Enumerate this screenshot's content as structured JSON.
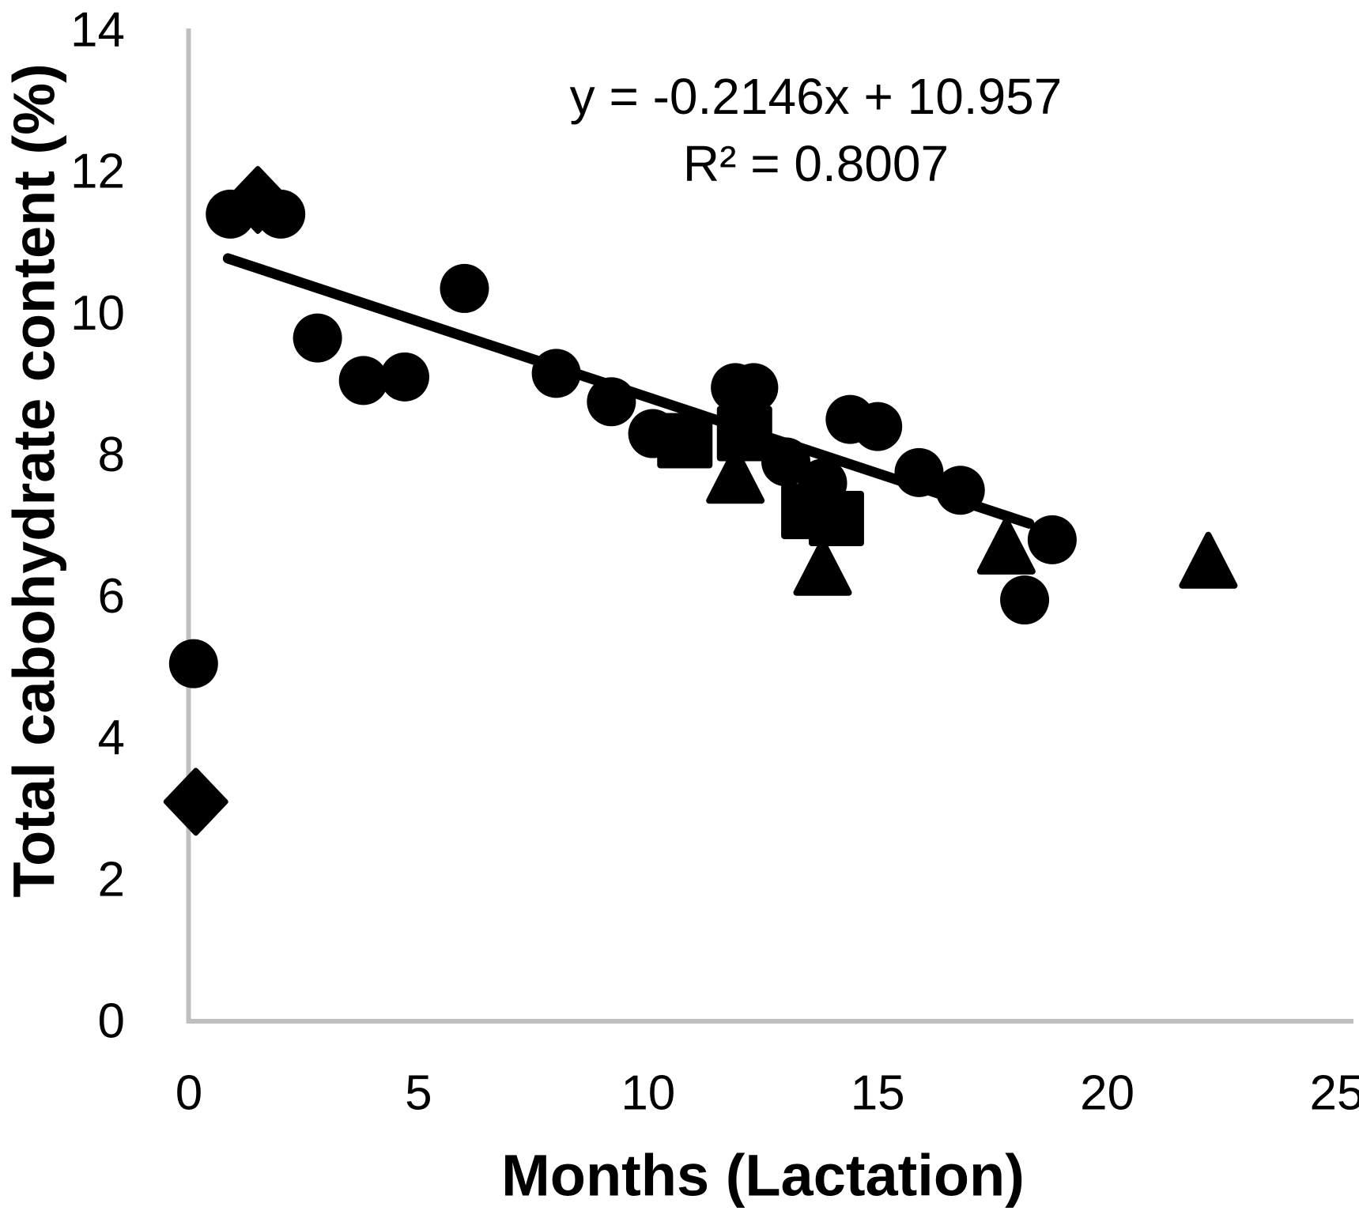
{
  "figure": {
    "background_color": "#ffffff",
    "axis_color": "#bfbfbf",
    "data_color": "#000000"
  },
  "annotation": {
    "equation_line1": "y = -0.2146x + 10.957",
    "equation_line2": "R² = 0.8007"
  },
  "chart_data": {
    "type": "scatter",
    "title": "",
    "xlabel": "Months (Lactation)",
    "ylabel": "Total cabohydrate content (%)",
    "xlim": [
      0,
      25
    ],
    "ylim": [
      0,
      14
    ],
    "x_ticks": [
      0,
      5,
      10,
      15,
      20,
      25
    ],
    "y_ticks": [
      0,
      2,
      4,
      6,
      8,
      10,
      12,
      14
    ],
    "grid": false,
    "legend_position": "none",
    "series": [
      {
        "name": "circles",
        "marker": "circle",
        "points": [
          [
            0.1,
            5.05
          ],
          [
            0.9,
            11.4
          ],
          [
            2.0,
            11.4
          ],
          [
            2.8,
            9.65
          ],
          [
            3.8,
            9.05
          ],
          [
            4.7,
            9.1
          ],
          [
            6.0,
            10.35
          ],
          [
            8.0,
            9.15
          ],
          [
            9.2,
            8.75
          ],
          [
            10.1,
            8.3
          ],
          [
            11.9,
            8.95
          ],
          [
            12.3,
            8.95
          ],
          [
            13.0,
            7.9
          ],
          [
            13.8,
            7.6
          ],
          [
            14.4,
            8.5
          ],
          [
            15.0,
            8.4
          ],
          [
            15.9,
            7.75
          ],
          [
            16.8,
            7.5
          ],
          [
            18.2,
            5.95
          ],
          [
            18.8,
            6.8
          ]
        ]
      },
      {
        "name": "diamonds",
        "marker": "diamond",
        "points": [
          [
            0.15,
            3.1
          ],
          [
            1.5,
            11.6
          ]
        ]
      },
      {
        "name": "squares",
        "marker": "square",
        "points": [
          [
            10.8,
            8.2
          ],
          [
            12.1,
            8.3
          ],
          [
            13.5,
            7.2
          ],
          [
            14.1,
            7.1
          ]
        ]
      },
      {
        "name": "triangles",
        "marker": "triangle",
        "points": [
          [
            11.9,
            7.7
          ],
          [
            13.8,
            6.4
          ],
          [
            17.8,
            6.7
          ],
          [
            22.2,
            6.5
          ]
        ]
      }
    ],
    "trendline": {
      "slope": -0.2146,
      "intercept": 10.957,
      "x_start": 0.85,
      "x_end": 18.3,
      "equation": "y = -0.2146x + 10.957",
      "r_squared": 0.8007
    }
  }
}
